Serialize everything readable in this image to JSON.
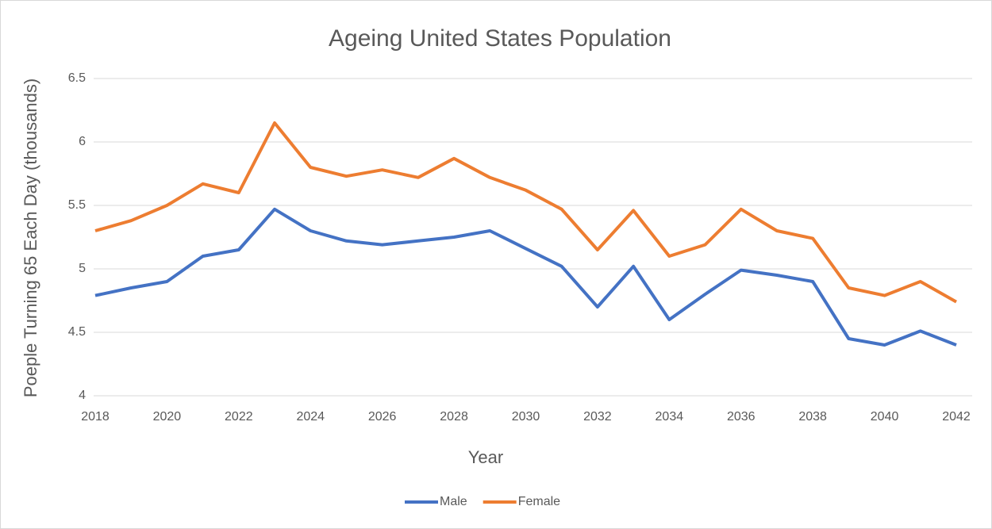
{
  "chart_data": {
    "type": "line",
    "title": "Ageing United States Population",
    "x_label": "Year",
    "y_label": "Poeple Turning 65 Each Day (thousands)",
    "x": [
      2018,
      2019,
      2020,
      2021,
      2022,
      2023,
      2024,
      2025,
      2026,
      2027,
      2028,
      2029,
      2030,
      2031,
      2032,
      2033,
      2034,
      2035,
      2036,
      2037,
      2038,
      2039,
      2040,
      2041,
      2042
    ],
    "xlim": [
      2018,
      2042
    ],
    "xticks": [
      2018,
      2020,
      2022,
      2024,
      2026,
      2028,
      2030,
      2032,
      2034,
      2036,
      2038,
      2040,
      2042
    ],
    "ylim": [
      4,
      6.5
    ],
    "yticks": [
      4,
      4.5,
      5,
      5.5,
      6,
      6.5
    ],
    "grid": true,
    "legend": "bottom",
    "series": [
      {
        "name": "Male",
        "color": "#4472c4",
        "values": [
          4.79,
          4.85,
          4.9,
          5.1,
          5.15,
          5.47,
          5.3,
          5.22,
          5.19,
          5.22,
          5.25,
          5.3,
          5.16,
          5.02,
          4.7,
          5.02,
          4.6,
          4.8,
          4.99,
          4.95,
          4.9,
          4.45,
          4.4,
          4.51,
          4.4
        ]
      },
      {
        "name": "Female",
        "color": "#ed7d31",
        "values": [
          5.3,
          5.38,
          5.5,
          5.67,
          5.6,
          6.15,
          5.8,
          5.73,
          5.78,
          5.72,
          5.87,
          5.72,
          5.62,
          5.47,
          5.15,
          5.46,
          5.1,
          5.19,
          5.47,
          5.3,
          5.24,
          4.85,
          4.79,
          4.9,
          4.74
        ]
      }
    ]
  }
}
